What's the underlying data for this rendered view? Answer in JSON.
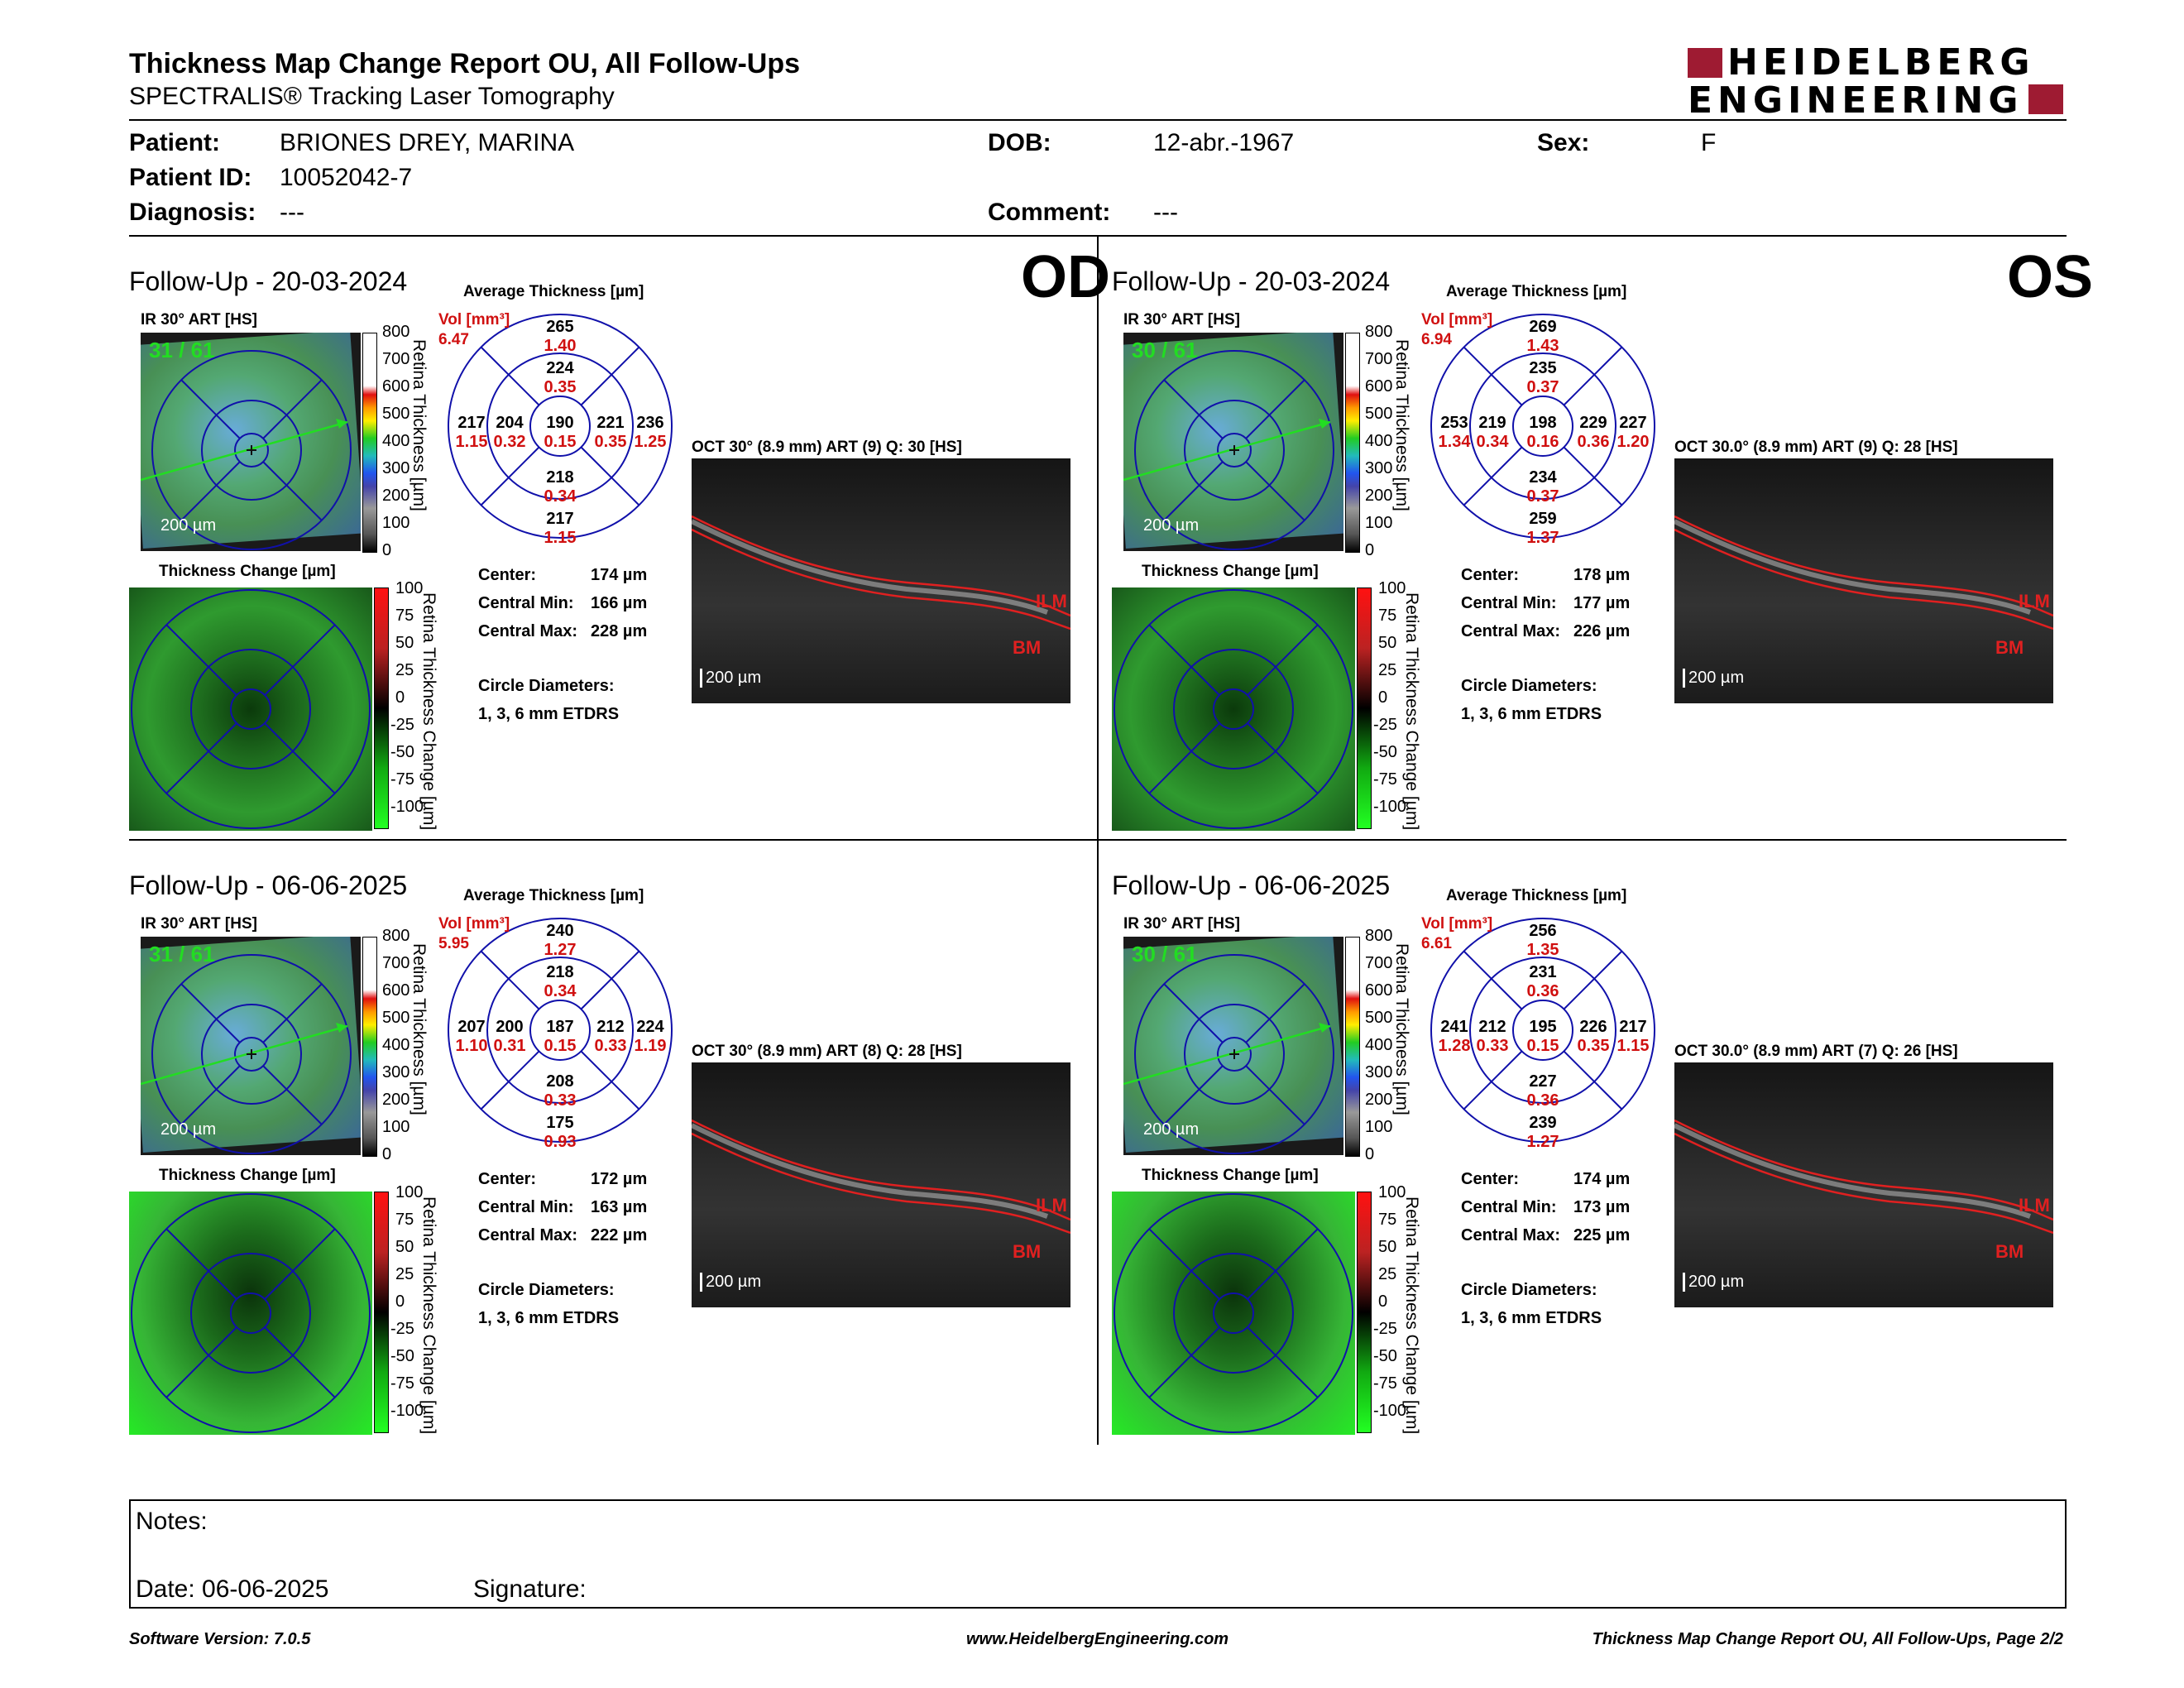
{
  "header": {
    "title": "Thickness Map Change Report OU, All Follow-Ups",
    "subtitle": "SPECTRALIS® Tracking Laser Tomography",
    "logo_line1": "HEIDELBERG",
    "logo_line2": "ENGINEERING"
  },
  "patient": {
    "patient_label": "Patient:",
    "patient_value": "BRIONES DREY, MARINA",
    "id_label": "Patient ID:",
    "id_value": "10052042-7",
    "diagnosis_label": "Diagnosis:",
    "diagnosis_value": "---",
    "dob_label": "DOB:",
    "dob_value": "12-abr.-1967",
    "comment_label": "Comment:",
    "comment_value": "---",
    "sex_label": "Sex:",
    "sex_value": "F"
  },
  "labels": {
    "ir": "IR 30° ART [HS]",
    "avg_thickness": "Average Thickness [µm]",
    "vol": "Vol [mm³]",
    "thickness_change": "Thickness Change [µm]",
    "retina_thickness": "Retina Thickness [µm]",
    "retina_change": "Retina Thickness Change [µm]",
    "scale_200": "200 µm",
    "center": "Center:",
    "central_min": "Central Min:",
    "central_max": "Central Max:",
    "circle_diam": "Circle Diameters:",
    "circle_diam_val": "1, 3, 6 mm ETDRS",
    "ilm": "ILM",
    "bm": "BM",
    "scale_top": [
      "800",
      "700",
      "600",
      "500",
      "400",
      "300",
      "200",
      "100",
      "0"
    ],
    "scale_chg": [
      "100",
      "75",
      "50",
      "25",
      "0",
      "-25",
      "-50",
      "-75",
      "-100"
    ]
  },
  "panels": [
    {
      "eye": "OD",
      "followup": "Follow-Up - 20-03-2024",
      "counter": "31 / 61",
      "oct_title": "OCT 30° (8.9 mm) ART (9) Q: 30 [HS]",
      "vol_total": "6.47",
      "sectors": {
        "outer_top": [
          "265",
          "1.40"
        ],
        "inner_top": [
          "224",
          "0.35"
        ],
        "outer_left": [
          "217",
          "1.15"
        ],
        "inner_left": [
          "204",
          "0.32"
        ],
        "center": [
          "190",
          "0.15"
        ],
        "inner_right": [
          "221",
          "0.35"
        ],
        "outer_right": [
          "236",
          "1.25"
        ],
        "inner_bottom": [
          "218",
          "0.34"
        ],
        "outer_bottom": [
          "217",
          "1.15"
        ]
      },
      "center_val": "174 µm",
      "central_min": "166 µm",
      "central_max": "228 µm"
    },
    {
      "eye": "OS",
      "followup": "Follow-Up - 20-03-2024",
      "counter": "30 / 61",
      "oct_title": "OCT 30.0° (8.9 mm) ART (9) Q: 28 [HS]",
      "vol_total": "6.94",
      "sectors": {
        "outer_top": [
          "269",
          "1.43"
        ],
        "inner_top": [
          "235",
          "0.37"
        ],
        "outer_left": [
          "253",
          "1.34"
        ],
        "inner_left": [
          "219",
          "0.34"
        ],
        "center": [
          "198",
          "0.16"
        ],
        "inner_right": [
          "229",
          "0.36"
        ],
        "outer_right": [
          "227",
          "1.20"
        ],
        "inner_bottom": [
          "234",
          "0.37"
        ],
        "outer_bottom": [
          "259",
          "1.37"
        ]
      },
      "center_val": "178 µm",
      "central_min": "177 µm",
      "central_max": "226 µm"
    },
    {
      "eye": "",
      "followup": "Follow-Up - 06-06-2025",
      "counter": "31 / 61",
      "oct_title": "OCT 30° (8.9 mm) ART (8) Q: 28 [HS]",
      "vol_total": "5.95",
      "sectors": {
        "outer_top": [
          "240",
          "1.27"
        ],
        "inner_top": [
          "218",
          "0.34"
        ],
        "outer_left": [
          "207",
          "1.10"
        ],
        "inner_left": [
          "200",
          "0.31"
        ],
        "center": [
          "187",
          "0.15"
        ],
        "inner_right": [
          "212",
          "0.33"
        ],
        "outer_right": [
          "224",
          "1.19"
        ],
        "inner_bottom": [
          "208",
          "0.33"
        ],
        "outer_bottom": [
          "175",
          "0.93"
        ]
      },
      "center_val": "172 µm",
      "central_min": "163 µm",
      "central_max": "222 µm"
    },
    {
      "eye": "",
      "followup": "Follow-Up - 06-06-2025",
      "counter": "30 / 61",
      "oct_title": "OCT 30.0° (8.9 mm) ART (7) Q: 26 [HS]",
      "vol_total": "6.61",
      "sectors": {
        "outer_top": [
          "256",
          "1.35"
        ],
        "inner_top": [
          "231",
          "0.36"
        ],
        "outer_left": [
          "241",
          "1.28"
        ],
        "inner_left": [
          "212",
          "0.33"
        ],
        "center": [
          "195",
          "0.15"
        ],
        "inner_right": [
          "226",
          "0.35"
        ],
        "outer_right": [
          "217",
          "1.15"
        ],
        "inner_bottom": [
          "227",
          "0.36"
        ],
        "outer_bottom": [
          "239",
          "1.27"
        ]
      },
      "center_val": "174 µm",
      "central_min": "173 µm",
      "central_max": "225 µm"
    }
  ],
  "notes": {
    "notes_label": "Notes:",
    "date_label": "Date: 06-06-2025",
    "signature_label": "Signature:"
  },
  "footer": {
    "software": "Software Version: 7.0.5",
    "website": "www.HeidelbergEngineering.com",
    "page": "Thickness Map Change Report OU, All Follow-Ups, Page 2/2"
  },
  "colors": {
    "accent_red": "#d01010",
    "etdrs_blue": "#1010aa",
    "logo_red": "#9e1b32"
  }
}
